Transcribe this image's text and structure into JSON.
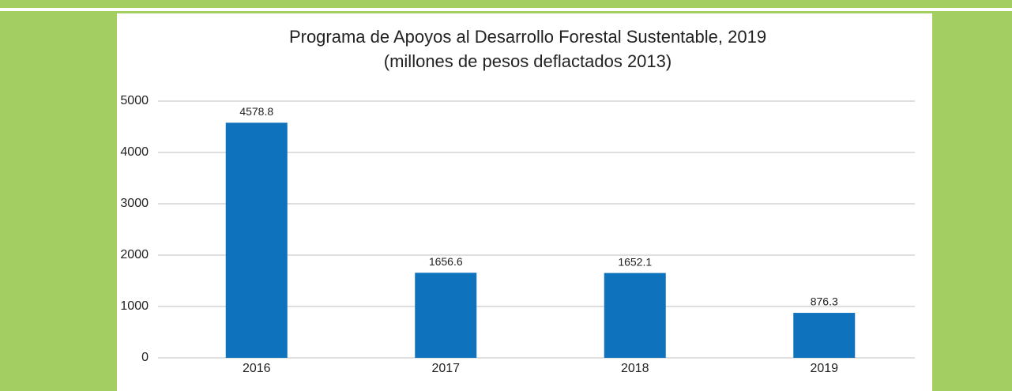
{
  "chart_data": {
    "type": "bar",
    "title": "Programa de Apoyos al Desarrollo Forestal Sustentable, 2019",
    "subtitle": "(millones de pesos deflactados 2013)",
    "categories": [
      "2016",
      "2017",
      "2018",
      "2019"
    ],
    "values": [
      4578.8,
      1656.6,
      1652.1,
      876.3
    ],
    "color": "#0f72bd",
    "ylim": [
      0,
      5000
    ],
    "yticks": [
      0,
      1000,
      2000,
      3000,
      4000,
      5000
    ],
    "grid": true
  }
}
